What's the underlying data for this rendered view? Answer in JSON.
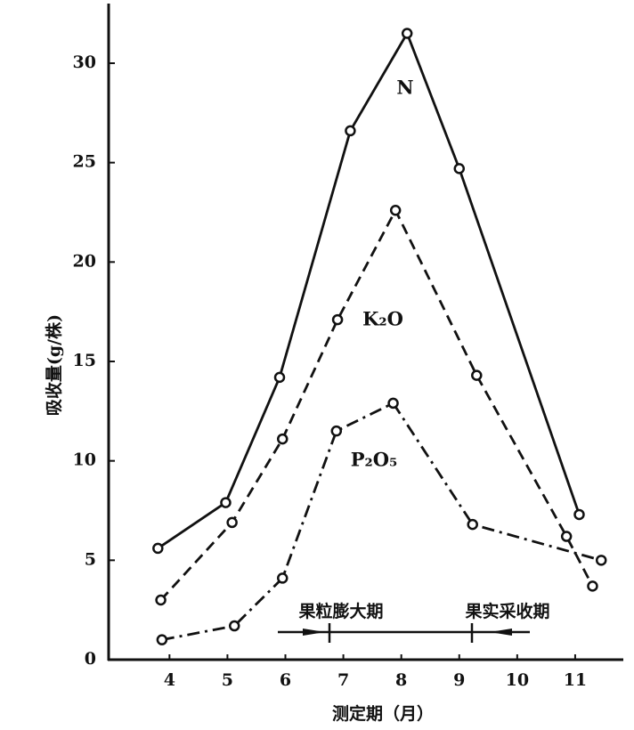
{
  "chart_data": {
    "type": "line",
    "y_label": "吸收量(g/株)",
    "x_label": "测定期（月）",
    "annotations": [
      "果粒膨大期",
      "果实采收期"
    ],
    "xlim": [
      2.95,
      11.8
    ],
    "xticks": [
      4,
      5,
      6,
      7,
      8,
      9,
      10,
      11
    ],
    "ylim": [
      0,
      33
    ],
    "yticks": [
      0,
      5,
      10,
      15,
      20,
      25,
      30
    ],
    "grid": false,
    "series": [
      {
        "name": "N",
        "color": "#111111",
        "style": "solid",
        "x": [
          3.8,
          4.97,
          5.9,
          7.12,
          8.1,
          9.0,
          11.07
        ],
        "values": [
          5.6,
          7.9,
          14.2,
          26.6,
          31.5,
          24.7,
          7.3
        ]
      },
      {
        "name": "K₂O",
        "color": "#111111",
        "style": "dashed",
        "x": [
          3.85,
          5.08,
          5.95,
          6.9,
          7.9,
          9.3,
          10.85,
          11.3
        ],
        "values": [
          3.0,
          6.9,
          11.1,
          17.1,
          22.6,
          14.3,
          6.2,
          3.7
        ]
      },
      {
        "name": "P₂O₅",
        "color": "#111111",
        "style": "dashdot",
        "x": [
          3.87,
          5.12,
          5.95,
          6.88,
          7.86,
          9.23,
          11.45
        ],
        "values": [
          1.0,
          1.7,
          4.1,
          11.5,
          12.9,
          6.8,
          5.0
        ]
      }
    ]
  }
}
